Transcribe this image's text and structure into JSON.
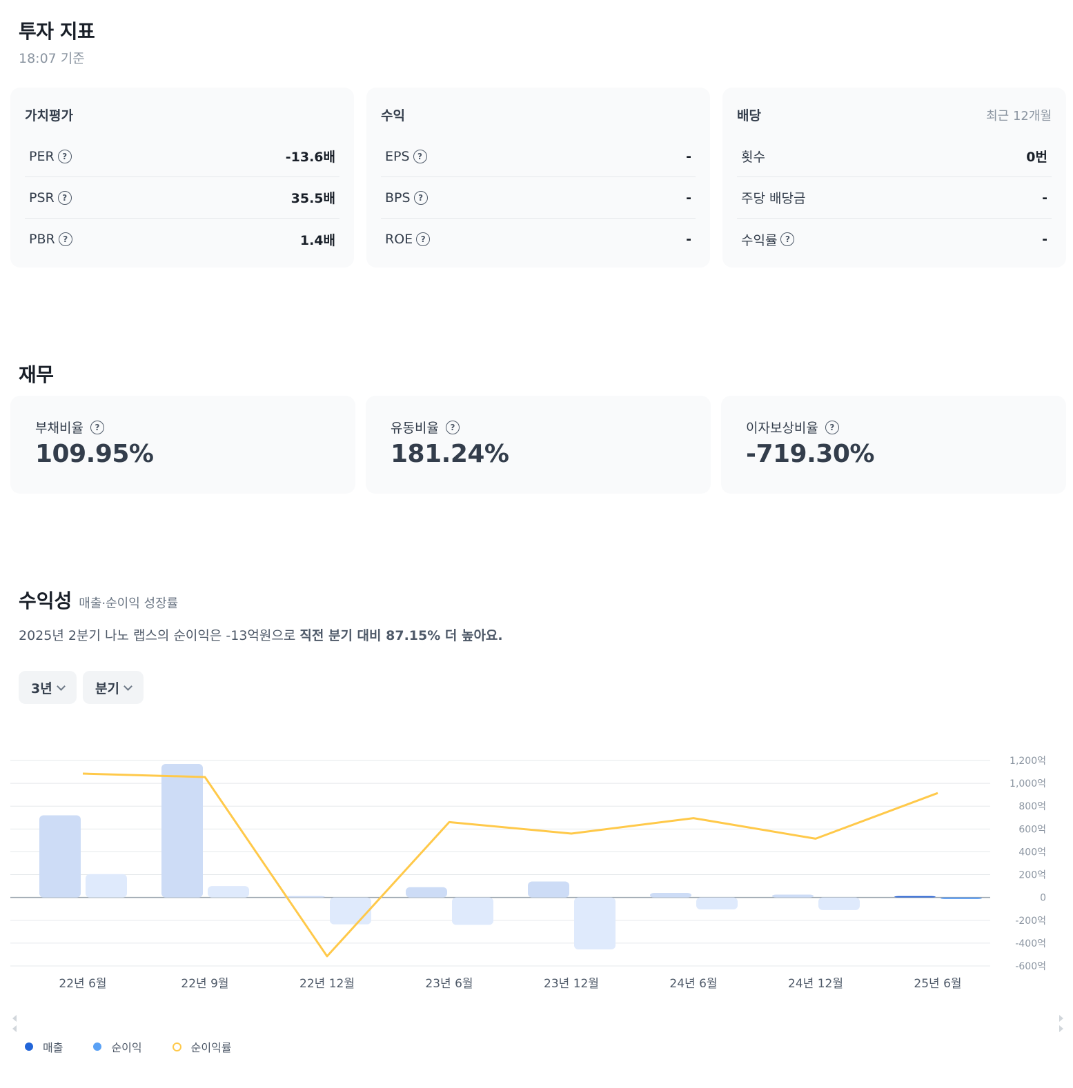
{
  "invest": {
    "title": "투자 지표",
    "as_of": "18:07 기준",
    "valuation": {
      "title": "가치평가",
      "rows": [
        {
          "label": "PER",
          "value": "-13.6배"
        },
        {
          "label": "PSR",
          "value": "35.5배"
        },
        {
          "label": "PBR",
          "value": "1.4배"
        }
      ]
    },
    "earnings": {
      "title": "수익",
      "rows": [
        {
          "label": "EPS",
          "value": "-"
        },
        {
          "label": "BPS",
          "value": "-"
        },
        {
          "label": "ROE",
          "value": "-"
        }
      ]
    },
    "dividend": {
      "title": "배당",
      "period": "최근 12개월",
      "rows": [
        {
          "label": "횟수",
          "value": "0번"
        },
        {
          "label": "주당 배당금",
          "value": "-"
        },
        {
          "label": "수익률",
          "value": "-"
        }
      ]
    }
  },
  "finance": {
    "title": "재무",
    "cards": [
      {
        "label": "부채비율",
        "value": "109.95%"
      },
      {
        "label": "유동비율",
        "value": "181.24%"
      },
      {
        "label": "이자보상비율",
        "value": "-719.30%"
      }
    ]
  },
  "profit": {
    "title": "수익성",
    "subtitle": "매출·순이익 성장률",
    "desc_plain": "2025년 2분기 나노 랩스의 순이익은 -13억원으로 ",
    "desc_bold": "직전 분기 대비 87.15% 더 높아요.",
    "period_select": "3년",
    "unit_select": "분기"
  },
  "chart_data": {
    "type": "bar",
    "categories": [
      "22년 6월",
      "22년 9월",
      "22년 12월",
      "23년 6월",
      "23년 12월",
      "24년 6월",
      "24년 12월",
      "25년 6월"
    ],
    "y_ticks": [
      "1,200억",
      "1,000억",
      "800억",
      "600억",
      "400억",
      "200억",
      "0",
      "-200억",
      "-400억",
      "-600억"
    ],
    "ylim": [
      -600,
      1200
    ],
    "series": [
      {
        "name": "매출",
        "kind": "bar",
        "values": [
          720,
          1170,
          10,
          90,
          140,
          40,
          25,
          8
        ]
      },
      {
        "name": "순이익",
        "kind": "bar",
        "values": [
          205,
          100,
          -235,
          -240,
          -455,
          -105,
          -110,
          -13
        ]
      },
      {
        "name": "순이익률",
        "kind": "line",
        "values": [
          1085,
          1055,
          -515,
          660,
          560,
          695,
          515,
          915
        ]
      }
    ],
    "legend_position": "bottom-left",
    "colors": {
      "revenue_bar": "#cddcf6",
      "revenue_bar_latest": "#2a63d4",
      "net_bar": "#dfeafc",
      "net_bar_latest": "#5a9bf0",
      "margin_line": "#ffc94a",
      "grid": "#e5e8eb",
      "zero_line": "#9aa4ae",
      "legend_revenue": "#2265d8",
      "legend_net": "#5aa1f5"
    }
  }
}
